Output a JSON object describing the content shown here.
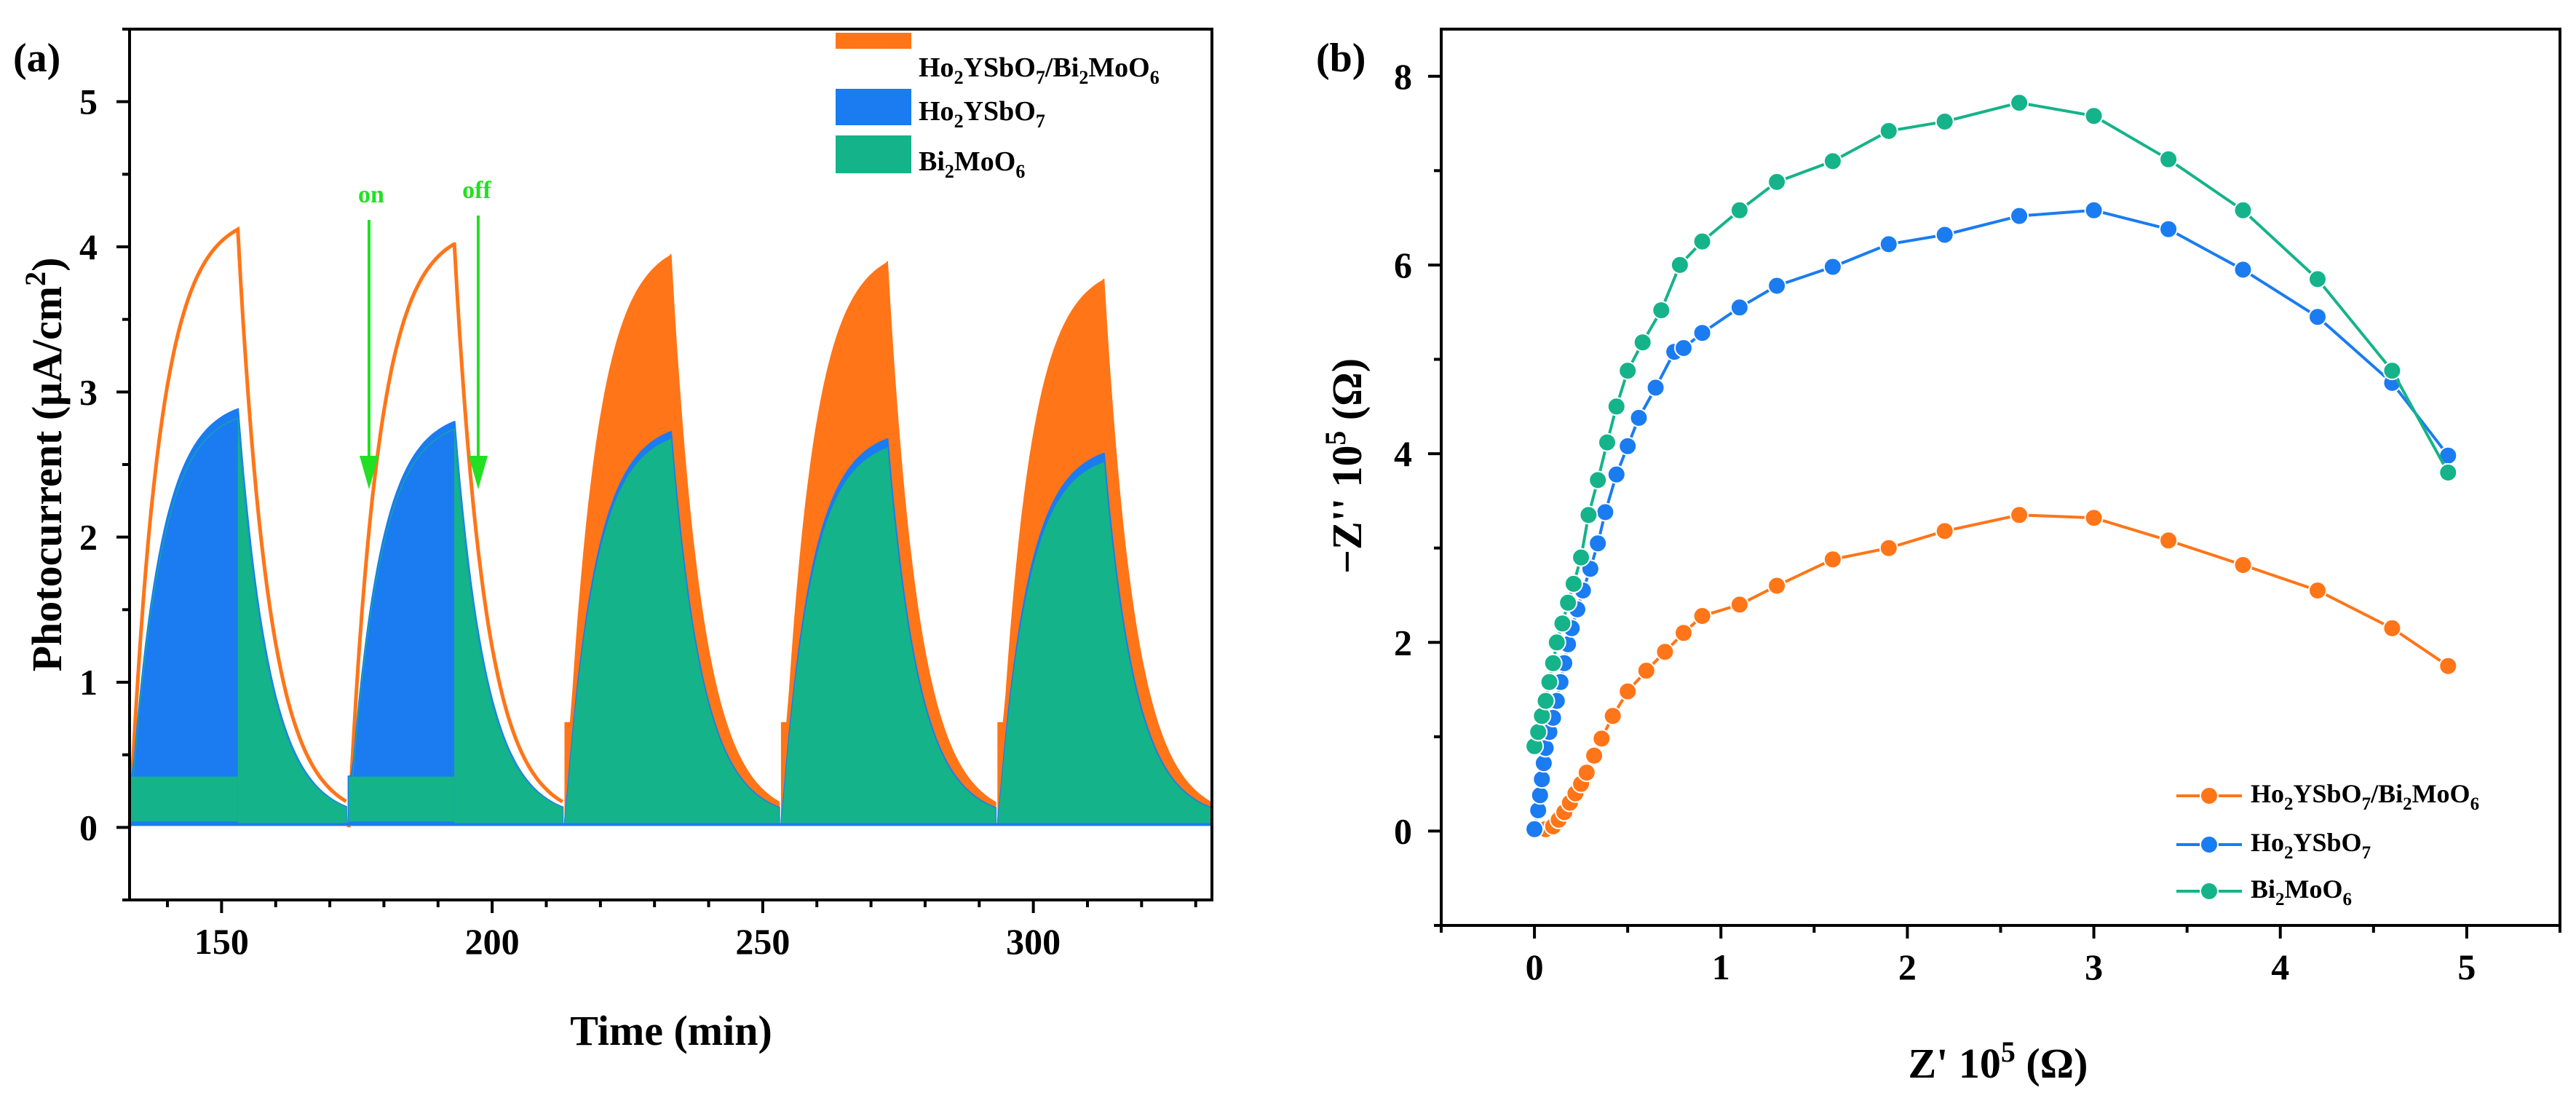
{
  "colors": {
    "composite": "#ff7518",
    "ho": "#1a7cf0",
    "bi": "#15b38a",
    "annotation": "#22e022"
  },
  "chart_data": [
    {
      "panel": "(a)",
      "type": "area",
      "xlabel": "Time (min)",
      "ylabel": "Photocurrent (μA/cm²)",
      "xlim": [
        133,
        333
      ],
      "ylim": [
        -0.5,
        5.5
      ],
      "xticks": [
        150,
        200,
        250,
        300
      ],
      "yticks": [
        0,
        1,
        2,
        3,
        4,
        5
      ],
      "legend_position": "top-right",
      "annotations": [
        {
          "text": "on",
          "x": 175
        },
        {
          "text": "off",
          "x": 195
        }
      ],
      "series": [
        {
          "name": "Ho2YSbO7/Bi2MoO6",
          "cycles": [
            {
              "on": 133,
              "peak": 153,
              "peak_value": 4.12,
              "off_end": 173
            },
            {
              "on": 173.5,
              "peak": 193,
              "peak_value": 4.03,
              "off_end": 213
            },
            {
              "on": 213.5,
              "peak": 233,
              "peak_value": 3.95,
              "off_end": 253
            },
            {
              "on": 253.5,
              "peak": 273,
              "peak_value": 3.9,
              "off_end": 293
            },
            {
              "on": 293.5,
              "peak": 313,
              "peak_value": 3.78,
              "off_end": 333
            }
          ]
        },
        {
          "name": "Ho2YSbO7",
          "cycles": [
            {
              "on": 133,
              "peak": 153,
              "peak_value": 2.88,
              "off_end": 173
            },
            {
              "on": 173.5,
              "peak": 193,
              "peak_value": 2.8,
              "off_end": 213
            },
            {
              "on": 213.5,
              "peak": 233,
              "peak_value": 2.73,
              "off_end": 253
            },
            {
              "on": 253.5,
              "peak": 273,
              "peak_value": 2.68,
              "off_end": 293
            },
            {
              "on": 293.5,
              "peak": 313,
              "peak_value": 2.58,
              "off_end": 333
            }
          ]
        },
        {
          "name": "Bi2MoO6",
          "cycles": [
            {
              "on": 133,
              "peak": 153,
              "peak_value": 2.82,
              "off_end": 173
            },
            {
              "on": 173.5,
              "peak": 193,
              "peak_value": 2.75,
              "off_end": 213
            },
            {
              "on": 213.5,
              "peak": 233,
              "peak_value": 2.68,
              "off_end": 253
            },
            {
              "on": 253.5,
              "peak": 273,
              "peak_value": 2.62,
              "off_end": 293
            },
            {
              "on": 293.5,
              "peak": 313,
              "peak_value": 2.52,
              "off_end": 333
            }
          ]
        }
      ]
    },
    {
      "panel": "(b)",
      "type": "scatter",
      "xlabel": "Z' 10⁵ (Ω)",
      "ylabel": "−Z'' 10⁵ (Ω)",
      "xlim": [
        -0.5,
        5.5
      ],
      "ylim": [
        -1,
        8.5
      ],
      "xticks": [
        0,
        1,
        2,
        3,
        4,
        5
      ],
      "yticks": [
        0,
        2,
        4,
        6,
        8
      ],
      "legend_position": "bottom-right",
      "series": [
        {
          "name": "Ho2YSbO7/Bi2MoO6",
          "x": [
            0.06,
            0.1,
            0.13,
            0.16,
            0.19,
            0.22,
            0.25,
            0.28,
            0.32,
            0.36,
            0.42,
            0.5,
            0.6,
            0.7,
            0.8,
            0.9,
            1.1,
            1.3,
            1.6,
            1.9,
            2.2,
            2.6,
            3.0,
            3.4,
            3.8,
            4.2,
            4.6,
            4.9
          ],
          "y": [
            0.02,
            0.05,
            0.12,
            0.2,
            0.3,
            0.4,
            0.5,
            0.62,
            0.8,
            0.98,
            1.22,
            1.48,
            1.7,
            1.9,
            2.1,
            2.28,
            2.4,
            2.6,
            2.88,
            3.0,
            3.18,
            3.35,
            3.32,
            3.08,
            2.82,
            2.55,
            2.15,
            1.75
          ]
        },
        {
          "name": "Ho2YSbO7",
          "x": [
            0.0,
            0.02,
            0.03,
            0.04,
            0.05,
            0.06,
            0.08,
            0.1,
            0.12,
            0.14,
            0.16,
            0.18,
            0.2,
            0.23,
            0.26,
            0.3,
            0.34,
            0.38,
            0.44,
            0.5,
            0.56,
            0.65,
            0.75,
            0.8,
            0.9,
            1.1,
            1.3,
            1.6,
            1.9,
            2.2,
            2.6,
            3.0,
            3.4,
            3.8,
            4.2,
            4.6,
            4.9
          ],
          "y": [
            0.02,
            0.22,
            0.38,
            0.55,
            0.72,
            0.88,
            1.05,
            1.2,
            1.38,
            1.58,
            1.78,
            1.98,
            2.15,
            2.35,
            2.55,
            2.78,
            3.05,
            3.38,
            3.78,
            4.08,
            4.38,
            4.7,
            5.08,
            5.12,
            5.28,
            5.55,
            5.78,
            5.98,
            6.22,
            6.32,
            6.52,
            6.58,
            6.38,
            5.95,
            5.45,
            4.75,
            3.98
          ]
        },
        {
          "name": "Bi2MoO6",
          "x": [
            0.0,
            0.02,
            0.04,
            0.06,
            0.08,
            0.1,
            0.12,
            0.15,
            0.18,
            0.21,
            0.25,
            0.29,
            0.34,
            0.39,
            0.44,
            0.5,
            0.58,
            0.68,
            0.78,
            0.9,
            1.1,
            1.3,
            1.6,
            1.9,
            2.2,
            2.6,
            3.0,
            3.4,
            3.8,
            4.2,
            4.6,
            4.9
          ],
          "y": [
            0.9,
            1.05,
            1.22,
            1.38,
            1.58,
            1.78,
            2.0,
            2.2,
            2.42,
            2.62,
            2.9,
            3.35,
            3.72,
            4.12,
            4.5,
            4.88,
            5.18,
            5.52,
            6.0,
            6.25,
            6.58,
            6.88,
            7.1,
            7.42,
            7.52,
            7.72,
            7.58,
            7.12,
            6.58,
            5.85,
            4.88,
            3.8
          ]
        }
      ]
    }
  ],
  "legend_a": {
    "composite": {
      "a": "Ho",
      "b": "2",
      "c": "YSbO",
      "d": "7",
      "e": "/Bi",
      "f": "2",
      "g": "MoO",
      "h": "6"
    },
    "ho": {
      "a": "Ho",
      "b": "2",
      "c": "YSbO",
      "d": "7"
    },
    "bi": {
      "a": "Bi",
      "b": "2",
      "c": "MoO",
      "d": "6"
    }
  },
  "labels_a": {
    "panel": "(a)",
    "xlabel": "Time (min)",
    "ylabel_main": "Photocurrent (μA/cm",
    "ylabel_sup": "2",
    "ylabel_end": ")",
    "on": "on",
    "off": "off",
    "xticks": [
      "150",
      "200",
      "250",
      "300"
    ],
    "yticks": [
      "0",
      "1",
      "2",
      "3",
      "4",
      "5"
    ]
  },
  "labels_b": {
    "panel": "(b)",
    "xlabel_a": "Z' 10",
    "xlabel_sup": "5",
    "xlabel_b": " (Ω)",
    "ylabel_a": "−Z'' 10",
    "ylabel_sup": "5",
    "ylabel_b": " (Ω)",
    "xticks": [
      "0",
      "1",
      "2",
      "3",
      "4",
      "5"
    ],
    "yticks": [
      "0",
      "2",
      "4",
      "6",
      "8"
    ]
  }
}
